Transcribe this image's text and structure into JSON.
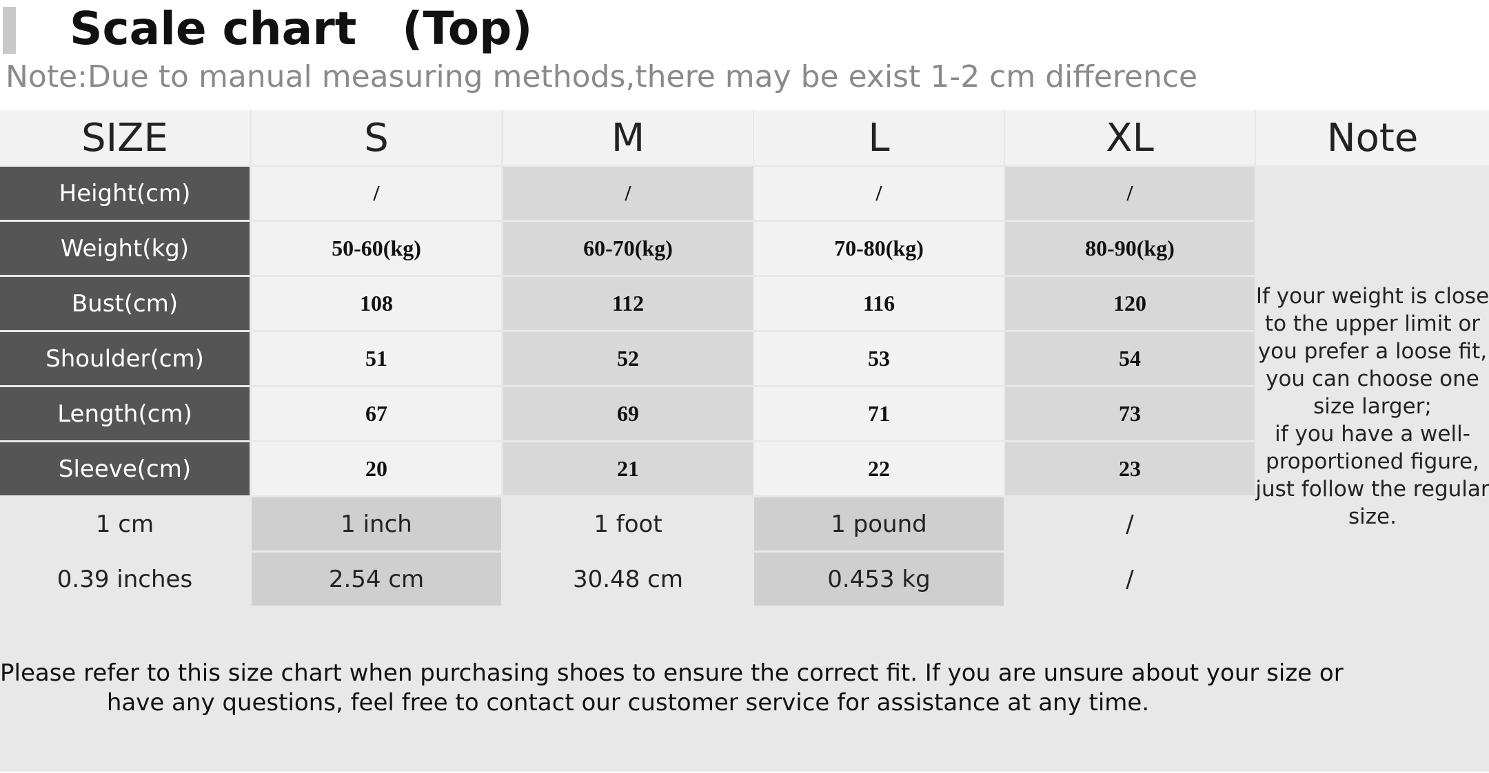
{
  "header": {
    "title": "Scale chart　(Top)",
    "note": "Note:Due to manual measuring methods,there may be exist 1-2 cm difference"
  },
  "table": {
    "columns": [
      "SIZE",
      "S",
      "M",
      "L",
      "XL",
      "Note"
    ],
    "rows": [
      {
        "label": "Height(cm)",
        "values": [
          "/",
          "/",
          "/",
          "/"
        ]
      },
      {
        "label": "Weight(kg)",
        "values": [
          "50-60(kg)",
          "60-70(kg)",
          "70-80(kg)",
          "80-90(kg)"
        ]
      },
      {
        "label": "Bust(cm)",
        "values": [
          "108",
          "112",
          "116",
          "120"
        ]
      },
      {
        "label": "Shoulder(cm)",
        "values": [
          "51",
          "52",
          "53",
          "54"
        ]
      },
      {
        "label": "Length(cm)",
        "values": [
          "67",
          "69",
          "71",
          "73"
        ]
      },
      {
        "label": "Sleeve(cm)",
        "values": [
          "20",
          "21",
          "22",
          "23"
        ]
      }
    ],
    "conversions": [
      [
        "1 cm",
        "1 inch",
        "1 foot",
        "1 pound",
        "/"
      ],
      [
        "0.39 inches",
        "2.54 cm",
        "30.48 cm",
        "0.453 kg",
        "/"
      ]
    ],
    "note_lines": [
      "If your weight is close",
      "to the upper limit or",
      "you prefer a loose fit,",
      "you can choose one",
      "size larger;",
      "if you have a well-",
      "proportioned figure,",
      "just follow the regular",
      "size."
    ]
  },
  "footer": {
    "lines": [
      "Please refer to this size chart when purchasing shoes to ensure the correct fit. If you are unsure about your size or",
      "have any questions, feel free to contact our customer service for assistance at any time."
    ]
  }
}
